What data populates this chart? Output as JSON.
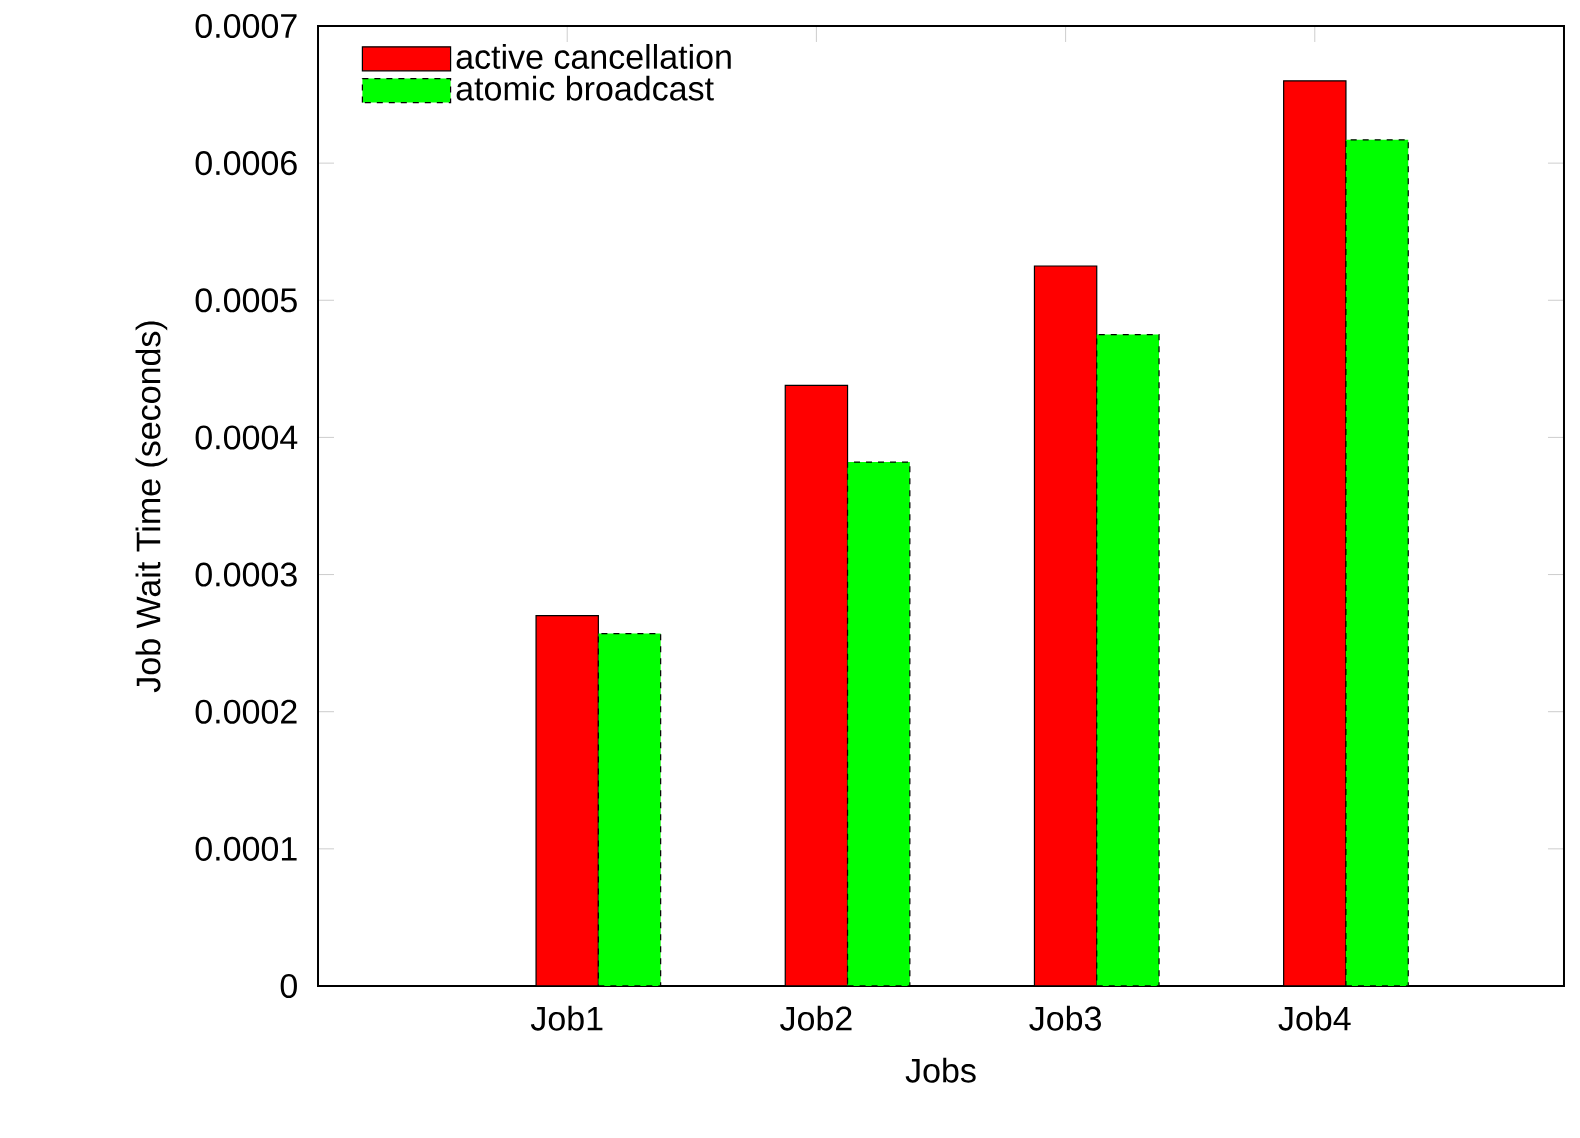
{
  "chart_data": {
    "type": "bar",
    "xlabel": "Jobs",
    "ylabel": "Job Wait Time (seconds)",
    "categories": [
      "Job1",
      "Job2",
      "Job3",
      "Job4"
    ],
    "series": [
      {
        "name": "active cancellation",
        "color": "#ff0000",
        "line_style": "solid",
        "values": [
          0.00027,
          0.000438,
          0.000525,
          0.00066
        ]
      },
      {
        "name": "atomic broadcast",
        "color": "#00ff00",
        "line_style": "dashed",
        "values": [
          0.000257,
          0.000382,
          0.000475,
          0.000617
        ]
      }
    ],
    "ylim": [
      0,
      0.0007
    ],
    "yticks": [
      0,
      0.0001,
      0.0002,
      0.0003,
      0.0004,
      0.0005,
      0.0006,
      0.0007
    ],
    "grid": false,
    "legend": "top left"
  }
}
